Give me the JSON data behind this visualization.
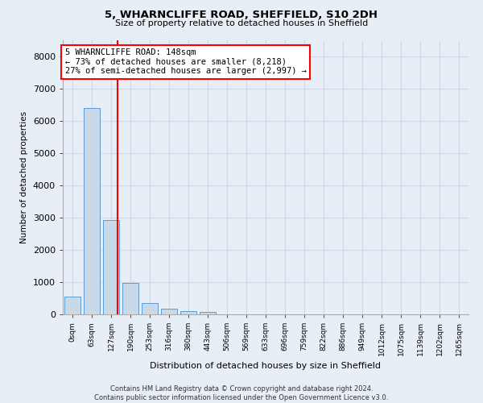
{
  "title": "5, WHARNCLIFFE ROAD, SHEFFIELD, S10 2DH",
  "subtitle": "Size of property relative to detached houses in Sheffield",
  "xlabel": "Distribution of detached houses by size in Sheffield",
  "ylabel": "Number of detached properties",
  "bar_color": "#c9d9e8",
  "bar_edge_color": "#5b9bd5",
  "categories": [
    "0sqm",
    "63sqm",
    "127sqm",
    "190sqm",
    "253sqm",
    "316sqm",
    "380sqm",
    "443sqm",
    "506sqm",
    "569sqm",
    "633sqm",
    "696sqm",
    "759sqm",
    "822sqm",
    "886sqm",
    "949sqm",
    "1012sqm",
    "1075sqm",
    "1139sqm",
    "1202sqm",
    "1265sqm"
  ],
  "values": [
    560,
    6400,
    2920,
    980,
    360,
    170,
    100,
    70,
    0,
    0,
    0,
    0,
    0,
    0,
    0,
    0,
    0,
    0,
    0,
    0,
    0
  ],
  "vline_x": 2.33,
  "annotation_text": "5 WHARNCLIFFE ROAD: 148sqm\n← 73% of detached houses are smaller (8,218)\n27% of semi-detached houses are larger (2,997) →",
  "annotation_box_color": "white",
  "annotation_box_edgecolor": "red",
  "vline_color": "red",
  "ylim": [
    0,
    8500
  ],
  "yticks": [
    0,
    1000,
    2000,
    3000,
    4000,
    5000,
    6000,
    7000,
    8000
  ],
  "footer_text": "Contains HM Land Registry data © Crown copyright and database right 2024.\nContains public sector information licensed under the Open Government Licence v3.0.",
  "grid_color": "#d0d8e8",
  "bg_color": "#e8eef5"
}
